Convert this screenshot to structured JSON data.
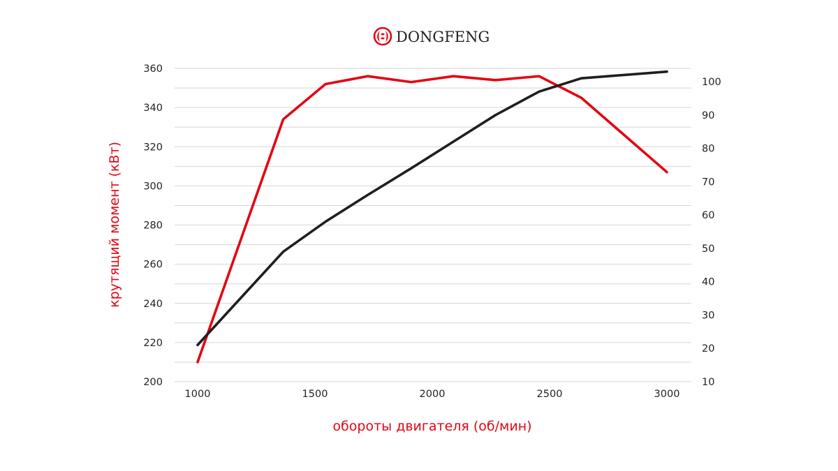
{
  "brand": {
    "name": "DONGFENG",
    "logo_icon": "dongfeng-logo-icon",
    "logo_color": "#e30613"
  },
  "chart_data": {
    "type": "line",
    "title": "",
    "xlabel": "обороты двигателя (об/мин)",
    "ylabel": "крутящий момент (кВт)",
    "y2label": "",
    "xlim": [
      1000,
      3000
    ],
    "ylim": [
      200,
      360
    ],
    "y2lim": [
      10,
      103
    ],
    "x_ticks": [
      1000,
      1500,
      2000,
      2500,
      3000
    ],
    "y_ticks": [
      200,
      220,
      240,
      260,
      280,
      300,
      320,
      340,
      360
    ],
    "y2_ticks": [
      10,
      20,
      30,
      40,
      50,
      60,
      70,
      80,
      90,
      100
    ],
    "grid": true,
    "label_color": "#e30613",
    "series": [
      {
        "axis": "left",
        "color": "#e30613",
        "x": [
          1000,
          1365,
          1545,
          1725,
          1910,
          2090,
          2270,
          2455,
          2635,
          3000
        ],
        "y": [
          210,
          334,
          352,
          356,
          353,
          356,
          354,
          356,
          345,
          307
        ]
      },
      {
        "axis": "right",
        "color": "#1f1f1f",
        "x": [
          1000,
          1365,
          1545,
          1725,
          1910,
          2090,
          2270,
          2455,
          2635,
          3000
        ],
        "y": [
          21,
          49,
          58,
          66,
          74,
          82,
          90,
          97,
          101,
          103
        ]
      }
    ]
  }
}
